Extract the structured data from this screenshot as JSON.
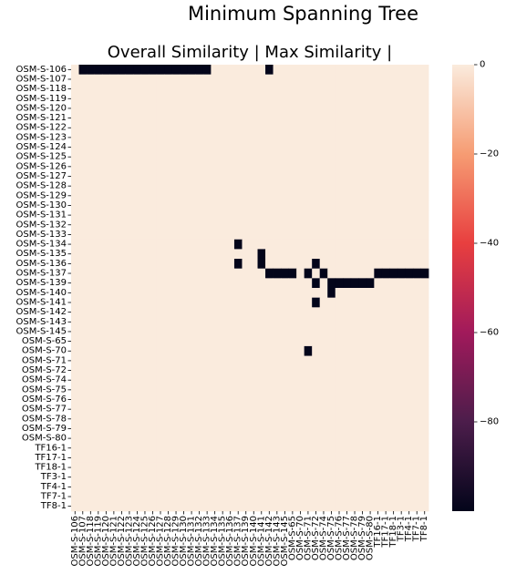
{
  "figure": {
    "suptitle": "Minimum Spanning Tree"
  },
  "chart_data": {
    "type": "heatmap",
    "title": "Overall Similarity | Max Similarity |",
    "xlabel": "",
    "ylabel": "",
    "row_labels": [
      "OSM-S-106",
      "OSM-S-107",
      "OSM-S-118",
      "OSM-S-119",
      "OSM-S-120",
      "OSM-S-121",
      "OSM-S-122",
      "OSM-S-123",
      "OSM-S-124",
      "OSM-S-125",
      "OSM-S-126",
      "OSM-S-127",
      "OSM-S-128",
      "OSM-S-129",
      "OSM-S-130",
      "OSM-S-131",
      "OSM-S-132",
      "OSM-S-133",
      "OSM-S-134",
      "OSM-S-135",
      "OSM-S-136",
      "OSM-S-137",
      "OSM-S-139",
      "OSM-S-140",
      "OSM-S-141",
      "OSM-S-142",
      "OSM-S-143",
      "OSM-S-145",
      "OSM-S-65",
      "OSM-S-70",
      "OSM-S-71",
      "OSM-S-72",
      "OSM-S-74",
      "OSM-S-75",
      "OSM-S-76",
      "OSM-S-77",
      "OSM-S-78",
      "OSM-S-79",
      "OSM-S-80",
      "TF16-1",
      "TF17-1",
      "TF18-1",
      "TF3-1",
      "TF4-1",
      "TF7-1",
      "TF8-1"
    ],
    "col_labels": [
      "OSM-S-106",
      "OSM-S-107",
      "OSM-S-118",
      "OSM-S-119",
      "OSM-S-120",
      "OSM-S-121",
      "OSM-S-122",
      "OSM-S-123",
      "OSM-S-124",
      "OSM-S-125",
      "OSM-S-126",
      "OSM-S-127",
      "OSM-S-128",
      "OSM-S-129",
      "OSM-S-130",
      "OSM-S-131",
      "OSM-S-132",
      "OSM-S-133",
      "OSM-S-134",
      "OSM-S-135",
      "OSM-S-136",
      "OSM-S-137",
      "OSM-S-139",
      "OSM-S-140",
      "OSM-S-141",
      "OSM-S-142",
      "OSM-S-143",
      "OSM-S-145",
      "OSM-S-65",
      "OSM-S-70",
      "OSM-S-71",
      "OSM-S-72",
      "OSM-S-74",
      "OSM-S-75",
      "OSM-S-76",
      "OSM-S-77",
      "OSM-S-78",
      "OSM-S-79",
      "OSM-S-80",
      "TF16-1",
      "TF17-1",
      "TF18-1",
      "TF3-1",
      "TF4-1",
      "TF7-1",
      "TF8-1"
    ],
    "default_value": 0,
    "edge_value": -100,
    "edges": [
      [
        "OSM-S-106",
        "OSM-S-107"
      ],
      [
        "OSM-S-106",
        "OSM-S-118"
      ],
      [
        "OSM-S-106",
        "OSM-S-119"
      ],
      [
        "OSM-S-106",
        "OSM-S-120"
      ],
      [
        "OSM-S-106",
        "OSM-S-121"
      ],
      [
        "OSM-S-106",
        "OSM-S-122"
      ],
      [
        "OSM-S-106",
        "OSM-S-123"
      ],
      [
        "OSM-S-106",
        "OSM-S-124"
      ],
      [
        "OSM-S-106",
        "OSM-S-125"
      ],
      [
        "OSM-S-106",
        "OSM-S-126"
      ],
      [
        "OSM-S-106",
        "OSM-S-127"
      ],
      [
        "OSM-S-106",
        "OSM-S-128"
      ],
      [
        "OSM-S-106",
        "OSM-S-129"
      ],
      [
        "OSM-S-106",
        "OSM-S-130"
      ],
      [
        "OSM-S-106",
        "OSM-S-131"
      ],
      [
        "OSM-S-106",
        "OSM-S-132"
      ],
      [
        "OSM-S-106",
        "OSM-S-133"
      ],
      [
        "OSM-S-106",
        "OSM-S-142"
      ],
      [
        "OSM-S-134",
        "OSM-S-137"
      ],
      [
        "OSM-S-135",
        "OSM-S-141"
      ],
      [
        "OSM-S-136",
        "OSM-S-137"
      ],
      [
        "OSM-S-136",
        "OSM-S-141"
      ],
      [
        "OSM-S-136",
        "OSM-S-72"
      ],
      [
        "OSM-S-137",
        "OSM-S-142"
      ],
      [
        "OSM-S-137",
        "OSM-S-143"
      ],
      [
        "OSM-S-137",
        "OSM-S-145"
      ],
      [
        "OSM-S-137",
        "OSM-S-65"
      ],
      [
        "OSM-S-137",
        "OSM-S-71"
      ],
      [
        "OSM-S-137",
        "OSM-S-74"
      ],
      [
        "OSM-S-137",
        "TF16-1"
      ],
      [
        "OSM-S-137",
        "TF17-1"
      ],
      [
        "OSM-S-137",
        "TF18-1"
      ],
      [
        "OSM-S-137",
        "TF3-1"
      ],
      [
        "OSM-S-137",
        "TF4-1"
      ],
      [
        "OSM-S-137",
        "TF7-1"
      ],
      [
        "OSM-S-137",
        "TF8-1"
      ],
      [
        "OSM-S-139",
        "OSM-S-72"
      ],
      [
        "OSM-S-139",
        "OSM-S-75"
      ],
      [
        "OSM-S-139",
        "OSM-S-76"
      ],
      [
        "OSM-S-139",
        "OSM-S-77"
      ],
      [
        "OSM-S-139",
        "OSM-S-78"
      ],
      [
        "OSM-S-139",
        "OSM-S-79"
      ],
      [
        "OSM-S-139",
        "OSM-S-80"
      ],
      [
        "OSM-S-140",
        "OSM-S-75"
      ],
      [
        "OSM-S-141",
        "OSM-S-72"
      ],
      [
        "OSM-S-70",
        "OSM-S-71"
      ]
    ],
    "colorbar": {
      "min": -100,
      "max": 0,
      "ticks": [
        0,
        -20,
        -40,
        -60,
        -80
      ],
      "tick_labels": [
        "0",
        "−20",
        "−40",
        "−60",
        "−80"
      ],
      "colormap": "rocket",
      "stops": [
        "#03051a",
        "#4c1d4b",
        "#a11a5b",
        "#e83f3f",
        "#f69c73",
        "#faebdd"
      ]
    }
  }
}
